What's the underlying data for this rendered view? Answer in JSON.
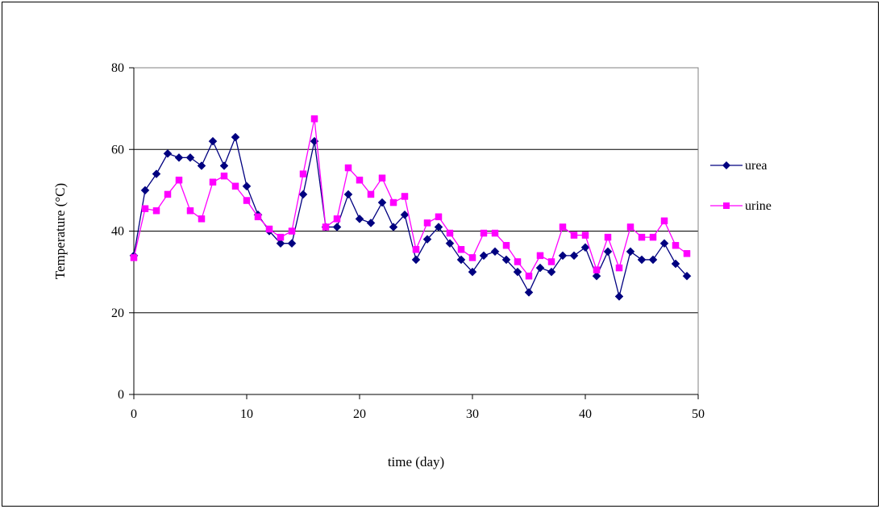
{
  "chart_data": {
    "type": "line",
    "title": "",
    "xlabel": "time (day)",
    "ylabel": "Temperature (°C)",
    "xlim": [
      0,
      50
    ],
    "ylim": [
      0,
      80
    ],
    "xticks": [
      0,
      10,
      20,
      30,
      40,
      50
    ],
    "yticks": [
      0,
      20,
      40,
      60,
      80
    ],
    "grid": "horizontal",
    "legend_position": "right",
    "series": [
      {
        "name": "urea",
        "color": "#000080",
        "marker": "diamond",
        "x": [
          0,
          1,
          2,
          3,
          4,
          5,
          6,
          7,
          8,
          9,
          10,
          11,
          12,
          13,
          14,
          15,
          16,
          17,
          18,
          19,
          20,
          21,
          22,
          23,
          24,
          25,
          26,
          27,
          28,
          29,
          30,
          31,
          32,
          33,
          34,
          35,
          36,
          37,
          38,
          39,
          40,
          41,
          42,
          43,
          44,
          45,
          46,
          47,
          48,
          49
        ],
        "values": [
          34,
          50,
          54,
          59,
          58,
          58,
          56,
          62,
          56,
          63,
          51,
          44,
          40,
          37,
          37,
          49,
          62,
          41,
          41,
          49,
          43,
          42,
          47,
          41,
          44,
          33,
          38,
          41,
          37,
          33,
          30,
          34,
          35,
          33,
          30,
          25,
          31,
          30,
          34,
          34,
          36,
          29,
          35,
          24,
          35,
          33,
          33,
          37,
          32,
          29
        ]
      },
      {
        "name": "urine",
        "color": "#FF00FF",
        "marker": "square",
        "x": [
          0,
          1,
          2,
          3,
          4,
          5,
          6,
          7,
          8,
          9,
          10,
          11,
          12,
          13,
          14,
          15,
          16,
          17,
          18,
          19,
          20,
          21,
          22,
          23,
          24,
          25,
          26,
          27,
          28,
          29,
          30,
          31,
          32,
          33,
          34,
          35,
          36,
          37,
          38,
          39,
          40,
          41,
          42,
          43,
          44,
          45,
          46,
          47,
          48,
          49
        ],
        "values": [
          33.5,
          45.5,
          45,
          49,
          52.5,
          45,
          43,
          52,
          53.5,
          51,
          47.5,
          43.5,
          40.5,
          38.5,
          40,
          54,
          67.5,
          41,
          43,
          55.5,
          52.5,
          49,
          53,
          47,
          48.5,
          35.5,
          42,
          43.5,
          39.5,
          35.5,
          33.5,
          39.5,
          39.5,
          36.5,
          32.5,
          29,
          34,
          32.5,
          41,
          39,
          39,
          30.5,
          38.5,
          31,
          41,
          38.5,
          38.5,
          42.5,
          36.5,
          34.5
        ]
      }
    ]
  }
}
